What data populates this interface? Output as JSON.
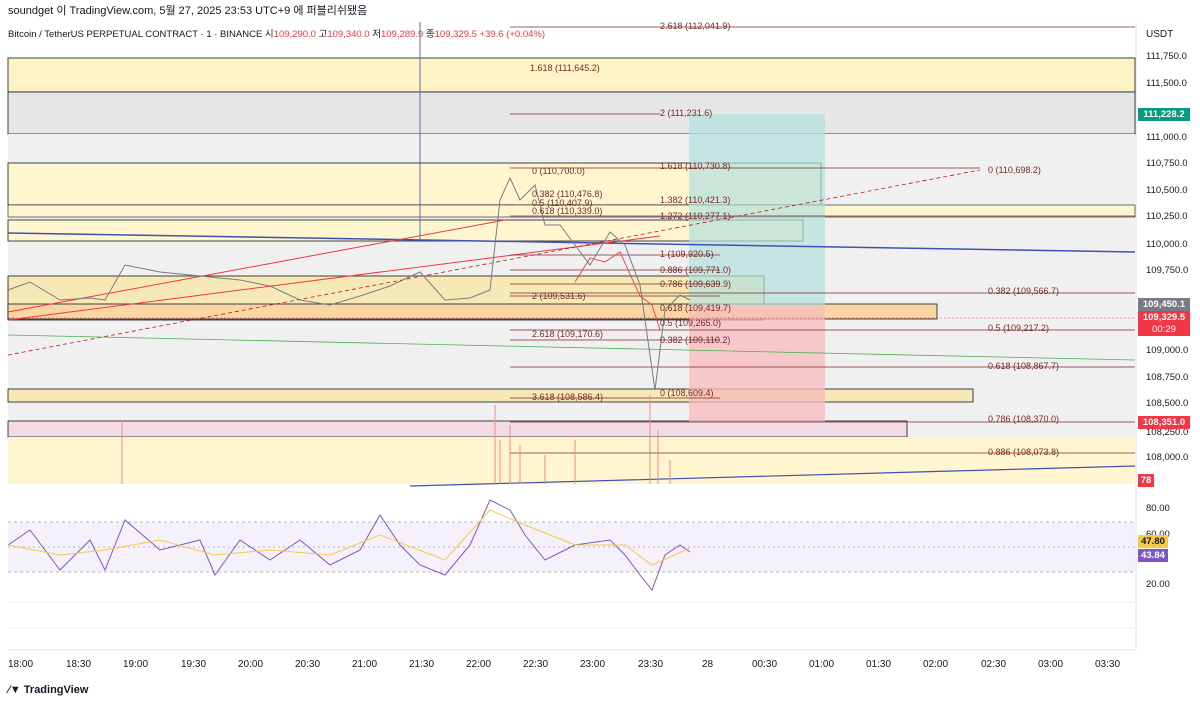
{
  "topbar": {
    "text": "soundget 이 TradingView.com, 5월 27, 2025 23:53 UTC+9 에 퍼블리쉬됐음"
  },
  "symbol": {
    "name": "Bitcoin / TetherUS PERPETUAL CONTRACT · 1 · BINANCE",
    "o_label": "시",
    "o": "109,290.0",
    "h_label": "고",
    "h": "109,340.0",
    "l_label": "저",
    "l": "109,289.9",
    "c_label": "종",
    "c": "109,329.5",
    "chg": "+39.6 (+0.04%)"
  },
  "axis": {
    "currency": "USDT",
    "price_ticks": [
      "111,750.0",
      "111,500.0",
      "111,000.0",
      "110,750.0",
      "110,500.0",
      "110,250.0",
      "110,000.0",
      "109,750.0",
      "109,000.0",
      "108,750.0",
      "108,500.0",
      "108,250.0",
      "108,000.0"
    ],
    "rsi_ticks": [
      "80.00",
      "60.00",
      "20.00"
    ],
    "time_ticks": [
      "18:00",
      "18:30",
      "19:00",
      "19:30",
      "20:00",
      "20:30",
      "21:00",
      "21:30",
      "22:00",
      "22:30",
      "23:00",
      "23:30",
      "28",
      "00:30",
      "01:00",
      "01:30",
      "02:00",
      "02:30",
      "03:00",
      "03:30"
    ]
  },
  "price_tags": {
    "target": {
      "value": "111,228.2",
      "color": "#089981"
    },
    "partial": {
      "value": "109,450.1",
      "color": "#787b86"
    },
    "last": {
      "value": "109,329.5",
      "color": "#f23645"
    },
    "countdown": "00:29",
    "stop": {
      "value": "108,351.0",
      "color": "#f23645"
    },
    "volume": {
      "value": "78",
      "color": "#f23645"
    }
  },
  "rsi": {
    "ma": {
      "value": "47.80",
      "color": "#f7c948"
    },
    "rsi": {
      "value": "43.84",
      "color": "#7e57c2"
    }
  },
  "fib_labels": {
    "l2618_top": "2.618 (112,041.9)",
    "l1618_top": "1.618 (111,645.2)",
    "l2_top": "2 (111,231.6)",
    "l1618_b": "1.618 (110,730.8)",
    "l0_a": "0 (110,700.0)",
    "l1382_b": "1.382 (110,421.3)",
    "l0382_a": "0.382 (110,476.8)",
    "l05_a": "0.5 (110,407.9)",
    "l0618_a": "0.618 (110,339.0)",
    "l1272_b": "1.272 (110,277.1)",
    "l1_b": "1 (109,920.5)",
    "l0886_b": "0.886 (109,771.0)",
    "l0786_b": "0.786 (109,639.9)",
    "l2_a": "2 (109,531.6)",
    "l0618_b": "0.618 (109,419.7)",
    "l05_b": "0.5 (109,265.0)",
    "l2618_a": "2.618 (109,170.6)",
    "l0382_b": "0.382 (109,110.2)",
    "l0_b": "0 (108,609.4)",
    "l3618_a": "3.618 (108,586.4)",
    "r0": "0 (110,698.2)",
    "r0382": "0.382 (109,566.7)",
    "r05": "0.5 (109,217.2)",
    "r0618": "0.618 (108,867.7)",
    "r0786": "0.786 (108,370.0)",
    "r0886": "0.886 (108,073.8)"
  },
  "footer": {
    "brand": "TradingView"
  }
}
